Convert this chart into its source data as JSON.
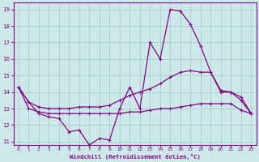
{
  "xlabel": "Windchill (Refroidissement éolien,°C)",
  "bg_color": "#cce8e8",
  "line_color": "#880088",
  "grid_color": "#99cccc",
  "xlim": [
    -0.5,
    23.5
  ],
  "ylim": [
    10.8,
    19.4
  ],
  "xticks": [
    0,
    1,
    2,
    3,
    4,
    5,
    6,
    7,
    8,
    9,
    10,
    11,
    12,
    13,
    14,
    15,
    16,
    17,
    18,
    19,
    20,
    21,
    22,
    23
  ],
  "yticks": [
    11,
    12,
    13,
    14,
    15,
    16,
    17,
    18,
    19
  ],
  "line1": [
    14.3,
    13.4,
    12.7,
    12.5,
    12.4,
    11.6,
    11.7,
    10.8,
    11.2,
    11.1,
    13.0,
    14.3,
    13.0,
    17.0,
    16.0,
    19.0,
    18.9,
    18.1,
    16.8,
    15.2,
    14.1,
    14.0,
    13.7,
    12.7
  ],
  "line2": [
    14.3,
    13.4,
    13.1,
    13.0,
    13.0,
    13.0,
    13.1,
    13.1,
    13.1,
    13.2,
    13.5,
    13.8,
    14.0,
    14.2,
    14.5,
    14.9,
    15.2,
    15.3,
    15.2,
    15.2,
    14.0,
    14.0,
    13.5,
    12.7
  ],
  "line3": [
    14.3,
    13.0,
    12.8,
    12.7,
    12.7,
    12.7,
    12.7,
    12.7,
    12.7,
    12.7,
    12.7,
    12.8,
    12.8,
    12.9,
    13.0,
    13.0,
    13.1,
    13.2,
    13.3,
    13.3,
    13.3,
    13.3,
    12.9,
    12.7
  ]
}
